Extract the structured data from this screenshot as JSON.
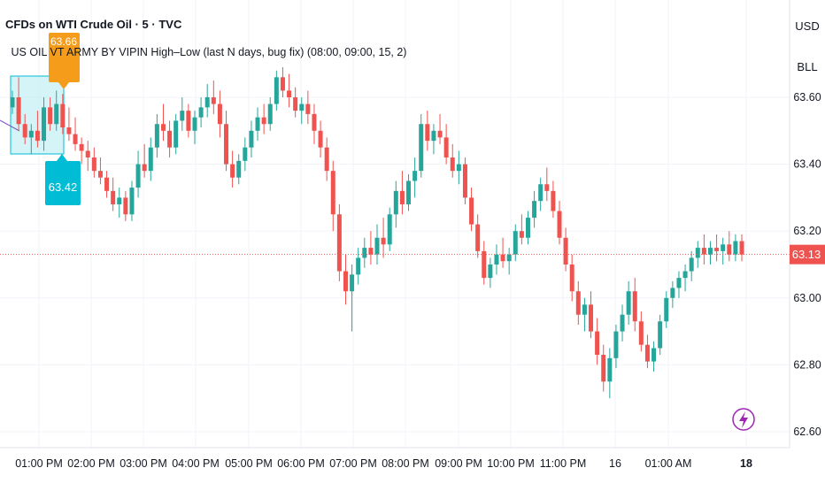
{
  "header": {
    "title": "CFDs on WTI Crude Oil · 5 · TVC",
    "indicator": "US OIL VT ARMY BY VIPIN High–Low (last N days, bug fix) (08:00, 09:00, 15, 2)"
  },
  "scale": {
    "currency": "USD",
    "unit": "BLL"
  },
  "annotations": {
    "high_label": "63.66",
    "low_label": "63.42",
    "last_price_label": "63.13"
  },
  "colors": {
    "up": "#26a69a",
    "down": "#ef5350",
    "high_tag": "#f59c1a",
    "low_tag": "#00bcd4",
    "box": "#b2ebf2"
  },
  "icons": {
    "alert": "lightning-bolt-icon"
  },
  "chart_data": {
    "type": "candlestick",
    "ylim": [
      62.55,
      63.72
    ],
    "y_ticks": [
      "63.60",
      "63.40",
      "63.20",
      "63.00",
      "62.80",
      "62.60"
    ],
    "x_ticks": [
      "01:00 PM",
      "02:00 PM",
      "03:00 PM",
      "04:00 PM",
      "05:00 PM",
      "06:00 PM",
      "07:00 PM",
      "08:00 PM",
      "09:00 PM",
      "10:00 PM",
      "11:00 PM",
      "16",
      "01:00 AM",
      "18"
    ],
    "last_price": 63.13,
    "candles": [
      [
        63.57,
        63.62,
        63.55,
        63.6
      ],
      [
        63.6,
        63.66,
        63.5,
        63.52
      ],
      [
        63.52,
        63.55,
        63.46,
        63.48
      ],
      [
        63.48,
        63.52,
        63.43,
        63.5
      ],
      [
        63.5,
        63.56,
        63.45,
        63.47
      ],
      [
        63.47,
        63.6,
        63.44,
        63.57
      ],
      [
        63.57,
        63.6,
        63.5,
        63.52
      ],
      [
        63.52,
        63.62,
        63.5,
        63.58
      ],
      [
        63.58,
        63.61,
        63.49,
        63.51
      ],
      [
        63.51,
        63.57,
        63.47,
        63.49
      ],
      [
        63.49,
        63.54,
        63.44,
        63.46
      ],
      [
        63.46,
        63.48,
        63.4,
        63.44
      ],
      [
        63.44,
        63.47,
        63.38,
        63.42
      ],
      [
        63.42,
        63.45,
        63.36,
        63.38
      ],
      [
        63.38,
        63.42,
        63.34,
        63.36
      ],
      [
        63.36,
        63.38,
        63.3,
        63.32
      ],
      [
        63.32,
        63.36,
        63.26,
        63.28
      ],
      [
        63.28,
        63.33,
        63.24,
        63.3
      ],
      [
        63.3,
        63.32,
        63.23,
        63.25
      ],
      [
        63.25,
        63.35,
        63.23,
        63.33
      ],
      [
        63.33,
        63.44,
        63.3,
        63.4
      ],
      [
        63.4,
        63.46,
        63.36,
        63.38
      ],
      [
        63.38,
        63.48,
        63.35,
        63.45
      ],
      [
        63.45,
        63.55,
        63.42,
        63.52
      ],
      [
        63.52,
        63.58,
        63.47,
        63.5
      ],
      [
        63.5,
        63.53,
        63.42,
        63.45
      ],
      [
        63.45,
        63.55,
        63.43,
        63.53
      ],
      [
        63.53,
        63.6,
        63.5,
        63.56
      ],
      [
        63.56,
        63.58,
        63.48,
        63.5
      ],
      [
        63.5,
        63.56,
        63.46,
        63.54
      ],
      [
        63.54,
        63.6,
        63.51,
        63.57
      ],
      [
        63.57,
        63.64,
        63.54,
        63.6
      ],
      [
        63.6,
        63.65,
        63.55,
        63.58
      ],
      [
        63.58,
        63.62,
        63.48,
        63.52
      ],
      [
        63.52,
        63.56,
        63.38,
        63.4
      ],
      [
        63.4,
        63.44,
        63.33,
        63.36
      ],
      [
        63.36,
        63.43,
        63.34,
        63.41
      ],
      [
        63.41,
        63.48,
        63.38,
        63.45
      ],
      [
        63.45,
        63.53,
        63.42,
        63.5
      ],
      [
        63.5,
        63.57,
        63.47,
        63.54
      ],
      [
        63.54,
        63.58,
        63.49,
        63.52
      ],
      [
        63.52,
        63.6,
        63.5,
        63.58
      ],
      [
        63.58,
        63.68,
        63.56,
        63.66
      ],
      [
        63.66,
        63.69,
        63.6,
        63.62
      ],
      [
        63.62,
        63.67,
        63.57,
        63.6
      ],
      [
        63.6,
        63.63,
        63.54,
        63.56
      ],
      [
        63.56,
        63.6,
        63.52,
        63.58
      ],
      [
        63.58,
        63.62,
        63.52,
        63.55
      ],
      [
        63.55,
        63.58,
        63.46,
        63.5
      ],
      [
        63.5,
        63.53,
        63.42,
        63.45
      ],
      [
        63.45,
        63.48,
        63.35,
        63.38
      ],
      [
        63.38,
        63.41,
        63.2,
        63.25
      ],
      [
        63.25,
        63.28,
        63.05,
        63.08
      ],
      [
        63.08,
        63.13,
        62.98,
        63.02
      ],
      [
        63.02,
        63.1,
        62.9,
        63.07
      ],
      [
        63.07,
        63.15,
        63.04,
        63.12
      ],
      [
        63.12,
        63.18,
        63.09,
        63.15
      ],
      [
        63.15,
        63.2,
        63.1,
        63.13
      ],
      [
        63.13,
        63.22,
        63.1,
        63.18
      ],
      [
        63.18,
        63.24,
        63.12,
        63.16
      ],
      [
        63.16,
        63.27,
        63.14,
        63.25
      ],
      [
        63.25,
        63.35,
        63.21,
        63.32
      ],
      [
        63.32,
        63.38,
        63.25,
        63.28
      ],
      [
        63.28,
        63.37,
        63.26,
        63.35
      ],
      [
        63.35,
        63.42,
        63.3,
        63.38
      ],
      [
        63.38,
        63.55,
        63.36,
        63.52
      ],
      [
        63.52,
        63.56,
        63.44,
        63.47
      ],
      [
        63.47,
        63.52,
        63.43,
        63.5
      ],
      [
        63.5,
        63.55,
        63.46,
        63.48
      ],
      [
        63.48,
        63.52,
        63.4,
        63.42
      ],
      [
        63.42,
        63.46,
        63.36,
        63.38
      ],
      [
        63.38,
        63.44,
        63.34,
        63.4
      ],
      [
        63.4,
        63.42,
        63.28,
        63.3
      ],
      [
        63.3,
        63.33,
        63.2,
        63.22
      ],
      [
        63.22,
        63.25,
        63.12,
        63.14
      ],
      [
        63.14,
        63.17,
        63.04,
        63.06
      ],
      [
        63.06,
        63.12,
        63.03,
        63.1
      ],
      [
        63.1,
        63.16,
        63.07,
        63.13
      ],
      [
        63.13,
        63.18,
        63.09,
        63.11
      ],
      [
        63.11,
        63.15,
        63.07,
        63.13
      ],
      [
        63.13,
        63.22,
        63.11,
        63.2
      ],
      [
        63.2,
        63.25,
        63.16,
        63.18
      ],
      [
        63.18,
        63.26,
        63.16,
        63.24
      ],
      [
        63.24,
        63.32,
        63.21,
        63.29
      ],
      [
        63.29,
        63.36,
        63.26,
        63.34
      ],
      [
        63.34,
        63.39,
        63.29,
        63.32
      ],
      [
        63.32,
        63.35,
        63.24,
        63.26
      ],
      [
        63.26,
        63.29,
        63.16,
        63.18
      ],
      [
        63.18,
        63.21,
        63.08,
        63.1
      ],
      [
        63.1,
        63.13,
        62.99,
        63.02
      ],
      [
        63.02,
        63.05,
        62.92,
        62.95
      ],
      [
        62.95,
        63.0,
        62.9,
        62.98
      ],
      [
        62.98,
        63.02,
        62.88,
        62.9
      ],
      [
        62.9,
        62.94,
        62.8,
        62.83
      ],
      [
        62.83,
        62.86,
        62.72,
        62.75
      ],
      [
        62.75,
        62.85,
        62.7,
        62.82
      ],
      [
        62.82,
        62.92,
        62.79,
        62.9
      ],
      [
        62.9,
        62.98,
        62.87,
        62.95
      ],
      [
        62.95,
        63.05,
        62.92,
        63.02
      ],
      [
        63.02,
        63.06,
        62.9,
        62.93
      ],
      [
        62.93,
        62.96,
        62.84,
        62.86
      ],
      [
        62.86,
        62.89,
        62.79,
        62.81
      ],
      [
        62.81,
        62.87,
        62.78,
        62.85
      ],
      [
        62.85,
        62.95,
        62.83,
        62.93
      ],
      [
        62.93,
        63.02,
        62.91,
        63.0
      ],
      [
        63.0,
        63.05,
        62.97,
        63.03
      ],
      [
        63.03,
        63.08,
        63.0,
        63.06
      ],
      [
        63.06,
        63.1,
        63.02,
        63.08
      ],
      [
        63.08,
        63.14,
        63.05,
        63.12
      ],
      [
        63.12,
        63.17,
        63.09,
        63.15
      ],
      [
        63.15,
        63.19,
        63.1,
        63.13
      ],
      [
        63.13,
        63.17,
        63.1,
        63.15
      ],
      [
        63.15,
        63.19,
        63.11,
        63.14
      ],
      [
        63.14,
        63.18,
        63.1,
        63.16
      ],
      [
        63.16,
        63.2,
        63.11,
        63.13
      ],
      [
        63.13,
        63.19,
        63.11,
        63.17
      ],
      [
        63.17,
        63.19,
        63.11,
        63.13
      ]
    ]
  }
}
